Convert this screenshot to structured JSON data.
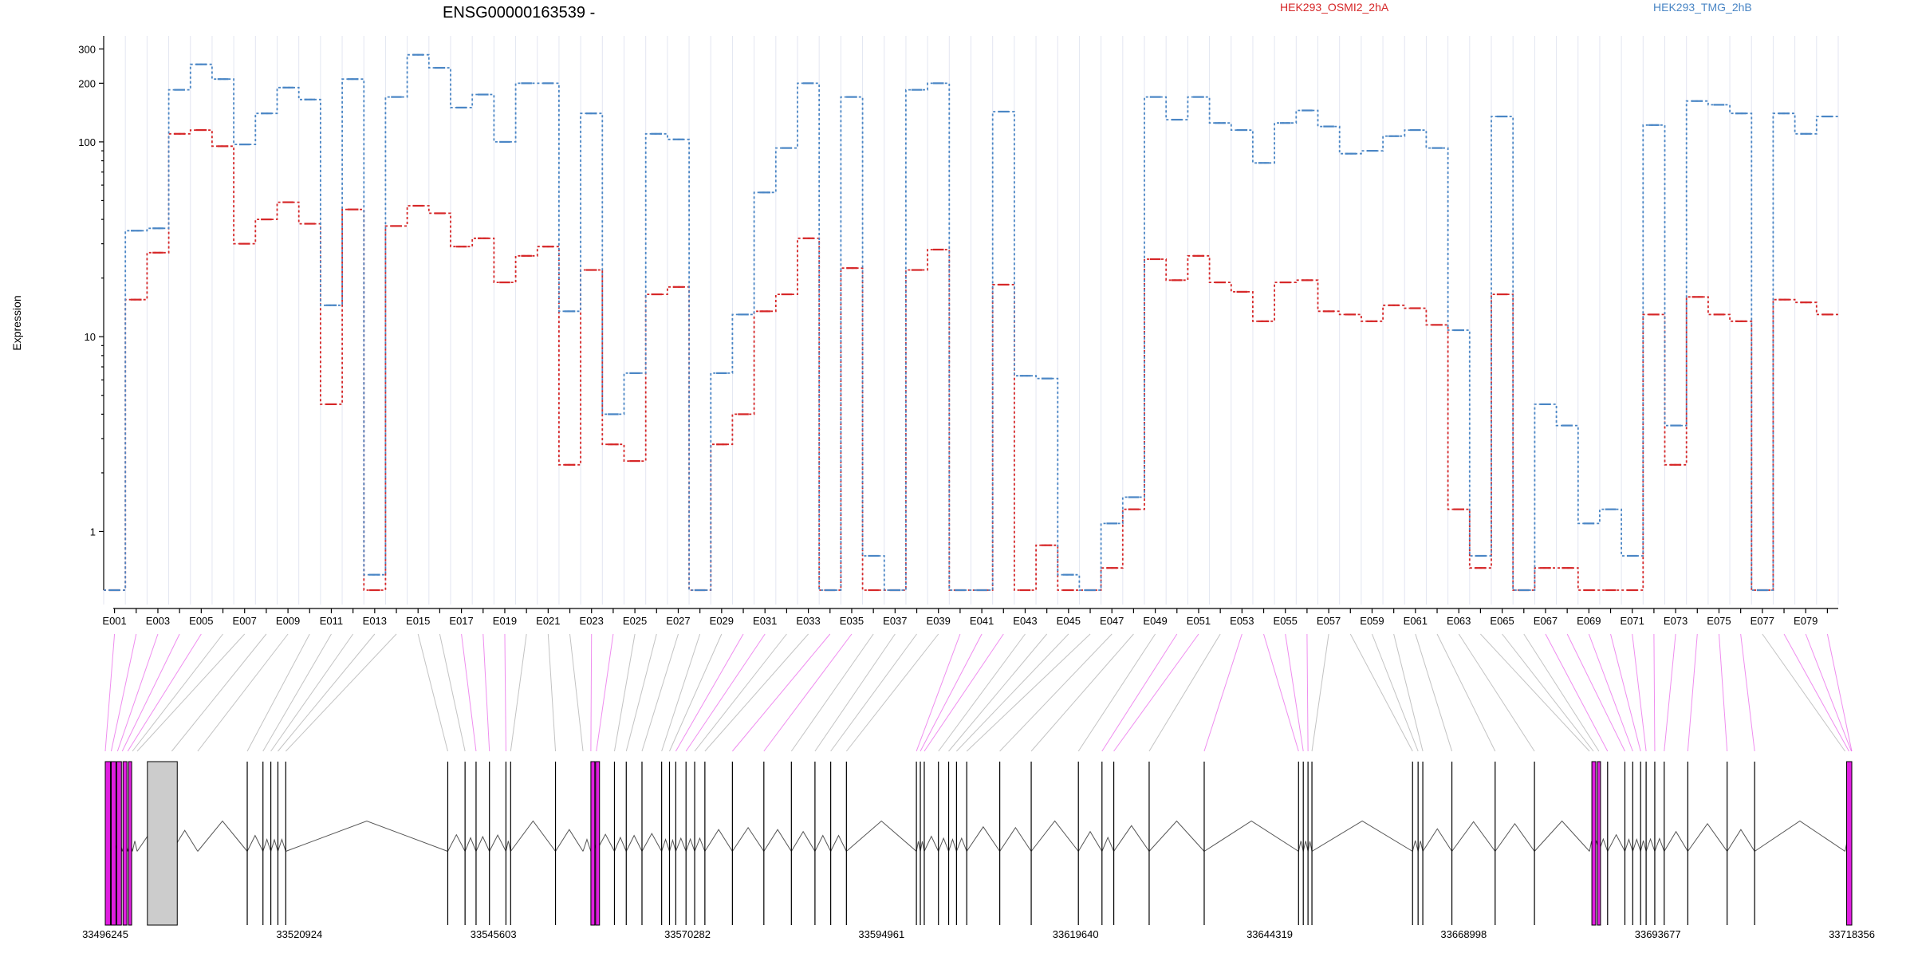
{
  "chart_data": {
    "type": "line",
    "title": "ENSG00000163539 -",
    "ylabel": "Expression",
    "xlabel": "",
    "y_scale": "log",
    "ylim": [
      0.5,
      350
    ],
    "y_ticks": [
      1,
      10,
      100,
      200,
      300
    ],
    "grid": "vertical lines at exon boundaries",
    "legend_placement": "top",
    "categories": [
      "E001",
      "E002",
      "E003",
      "E004",
      "E005",
      "E006",
      "E007",
      "E008",
      "E009",
      "E010",
      "E011",
      "E012",
      "E013",
      "E014",
      "E015",
      "E016",
      "E017",
      "E018",
      "E019",
      "E020",
      "E021",
      "E022",
      "E023",
      "E024",
      "E025",
      "E026",
      "E027",
      "E028",
      "E029",
      "E030",
      "E031",
      "E032",
      "E033",
      "E034",
      "E035",
      "E036",
      "E037",
      "E038",
      "E039",
      "E040",
      "E041",
      "E042",
      "E043",
      "E044",
      "E045",
      "E046",
      "E047",
      "E048",
      "E049",
      "E050",
      "E051",
      "E052",
      "E053",
      "E054",
      "E055",
      "E056",
      "E057",
      "E058",
      "E059",
      "E060",
      "E061",
      "E062",
      "E063",
      "E064",
      "E065",
      "E066",
      "E067",
      "E068",
      "E069",
      "E070",
      "E071",
      "E072",
      "E073",
      "E074",
      "E075",
      "E076",
      "E077",
      "E078",
      "E079",
      "E080"
    ],
    "labeled_categories": [
      "E001",
      "E003",
      "E005",
      "E007",
      "E009",
      "E011",
      "E013",
      "E015",
      "E017",
      "E019",
      "E021",
      "E023",
      "E025",
      "E027",
      "E029",
      "E031",
      "E033",
      "E035",
      "E037",
      "E039",
      "E041",
      "E043",
      "E045",
      "E047",
      "E049",
      "E051",
      "E053",
      "E055",
      "E057",
      "E059",
      "E061",
      "E063",
      "E065",
      "E067",
      "E069",
      "E071",
      "E073",
      "E075",
      "E077",
      "E079"
    ],
    "series": [
      {
        "name": "HEK293_OSMI2_2hA",
        "color": "#d62728",
        "values": [
          0.5,
          15.5,
          27,
          110,
          115,
          95,
          30,
          40,
          49,
          38,
          4.5,
          45,
          0.5,
          37,
          47,
          43,
          29,
          32,
          19,
          26,
          29,
          2.2,
          22,
          2.8,
          2.3,
          16.5,
          18,
          0.5,
          2.8,
          4,
          13.5,
          16.5,
          32,
          0.5,
          22.5,
          0.5,
          0.5,
          22,
          28,
          0.5,
          0.5,
          18.5,
          0.5,
          0.85,
          0.5,
          0.5,
          0.65,
          1.3,
          25,
          19.5,
          26,
          19,
          17,
          12,
          19,
          19.5,
          13.5,
          13,
          12,
          14.5,
          14,
          11.5,
          1.3,
          0.65,
          16.5,
          0.5,
          0.65,
          0.65,
          0.5,
          0.5,
          0.5,
          13,
          2.2,
          16,
          13,
          12,
          0.5,
          15.5,
          15,
          13
        ]
      },
      {
        "name": "HEK293_TMG_2hB",
        "color": "#4a86c5",
        "values": [
          0.5,
          35,
          36,
          185,
          250,
          210,
          97,
          140,
          190,
          165,
          14.5,
          210,
          0.6,
          170,
          280,
          240,
          150,
          175,
          100,
          200,
          200,
          13.5,
          140,
          4,
          6.5,
          110,
          103,
          0.5,
          6.5,
          13,
          55,
          93,
          200,
          0.5,
          170,
          0.75,
          0.5,
          185,
          200,
          0.5,
          0.5,
          143,
          6.3,
          6.1,
          0.6,
          0.5,
          1.1,
          1.5,
          170,
          130,
          170,
          125,
          115,
          78,
          125,
          145,
          120,
          87,
          90,
          107,
          115,
          93,
          10.8,
          0.75,
          135,
          0.5,
          4.5,
          3.5,
          1.1,
          1.3,
          0.75,
          122,
          3.5,
          162,
          155,
          140,
          0.5,
          140,
          110,
          135
        ]
      }
    ]
  },
  "gene_model": {
    "coordinate_labels": [
      "33496245",
      "33520924",
      "33545603",
      "33570282",
      "33594961",
      "33619640",
      "33644319",
      "33668998",
      "33693677",
      "33718356"
    ],
    "coord_min": 33496245,
    "coord_max": 33718356,
    "highlight_color": "#e01ee0",
    "neutral_color": "#888888",
    "intron_color": "#555555",
    "box_fill": "#cccccc",
    "exon_positions": [
      33496245,
      33497000,
      33497800,
      33498400,
      33499100,
      33499700,
      33500300,
      33504700,
      33508000,
      33514300,
      33516300,
      33517300,
      33518200,
      33519200,
      33539800,
      33542000,
      33543400,
      33545100,
      33547200,
      33547800,
      33553500,
      33557000,
      33558000,
      33558700,
      33561000,
      33562500,
      33564500,
      33567000,
      33568000,
      33568800,
      33570100,
      33571200,
      33572500,
      33576000,
      33580000,
      33583500,
      33586500,
      33588500,
      33590500,
      33599400,
      33599900,
      33600400,
      33602200,
      33603500,
      33604500,
      33605800,
      33610000,
      33614000,
      33620000,
      33623000,
      33624500,
      33629000,
      33636000,
      33648000,
      33648600,
      33649200,
      33649700,
      33662500,
      33663200,
      33663800,
      33667500,
      33673000,
      33678000,
      33685000,
      33685500,
      33686200,
      33687300,
      33689500,
      33690500,
      33691500,
      33692200,
      33693300,
      33694500,
      33697500,
      33702500,
      33706000,
      33717500,
      33718000,
      33718300,
      33718356
    ],
    "exon_highlight": [
      true,
      true,
      true,
      true,
      true,
      false,
      false,
      false,
      false,
      false,
      false,
      false,
      false,
      false,
      false,
      false,
      true,
      true,
      true,
      false,
      false,
      false,
      true,
      true,
      false,
      false,
      false,
      false,
      false,
      true,
      true,
      false,
      false,
      true,
      true,
      false,
      false,
      false,
      false,
      true,
      true,
      true,
      false,
      false,
      false,
      false,
      false,
      false,
      false,
      true,
      true,
      false,
      true,
      true,
      true,
      true,
      false,
      false,
      false,
      false,
      false,
      false,
      false,
      false,
      false,
      false,
      true,
      true,
      true,
      true,
      true,
      true,
      true,
      true,
      true,
      true,
      false,
      true,
      true,
      true
    ],
    "bars": [
      {
        "from": 33496245,
        "to": 33496900,
        "fill": "#e01ee0"
      },
      {
        "from": 33497000,
        "to": 33497600,
        "fill": "#e01ee0"
      },
      {
        "from": 33497700,
        "to": 33498300,
        "fill": "#e01ee0"
      },
      {
        "from": 33498500,
        "to": 33499000,
        "fill": "#e01ee0"
      },
      {
        "from": 33499200,
        "to": 33499600,
        "fill": "#e01ee0"
      },
      {
        "from": 33501600,
        "to": 33505400,
        "fill": "#cccccc"
      },
      {
        "from": 33558000,
        "to": 33558500,
        "fill": "#e01ee0"
      },
      {
        "from": 33558600,
        "to": 33559100,
        "fill": "#e01ee0"
      },
      {
        "from": 33685300,
        "to": 33685800,
        "fill": "#e01ee0"
      },
      {
        "from": 33686000,
        "to": 33686400,
        "fill": "#e01ee0"
      },
      {
        "from": 33717700,
        "to": 33718356,
        "fill": "#e01ee0"
      }
    ],
    "lines": [
      33514300,
      33516300,
      33517300,
      33518200,
      33519200,
      33539800,
      33542000,
      33543400,
      33545100,
      33547200,
      33547800,
      33553500,
      33561000,
      33562500,
      33564500,
      33567000,
      33568000,
      33568800,
      33570100,
      33571200,
      33572500,
      33576000,
      33580000,
      33583500,
      33586500,
      33588500,
      33590500,
      33599400,
      33599900,
      33600400,
      33602200,
      33603500,
      33604500,
      33605800,
      33610000,
      33614000,
      33620000,
      33623000,
      33624500,
      33629000,
      33636000,
      33648000,
      33648600,
      33649200,
      33649700,
      33662500,
      33663200,
      33663800,
      33667500,
      33673000,
      33678000,
      33687300,
      33689500,
      33690500,
      33691500,
      33692200,
      33693300,
      33694500,
      33697500,
      33702500,
      33706000
    ]
  }
}
